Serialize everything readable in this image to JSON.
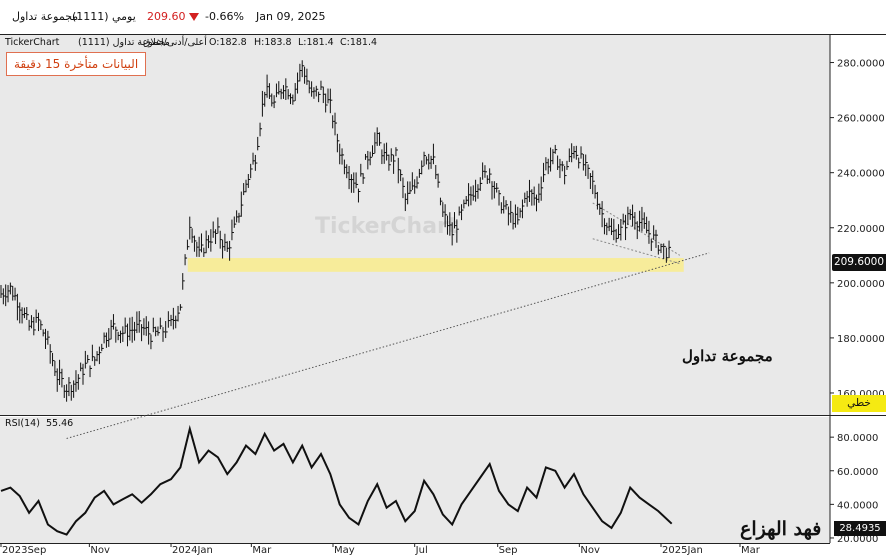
{
  "header": {
    "symbol_name": "مجموعة تداول",
    "symbol_code": "(1111)",
    "period": "يومي",
    "price": "209.60",
    "change": "-0.66%",
    "date": "Jan 09, 2025",
    "change_color": "#d32020"
  },
  "legend": {
    "source": "TickerChart",
    "symbol": "مجموعة تداول (1111)",
    "series": "أعلى/أدنى/اغلاق",
    "open": "O:182.8",
    "high": "H:183.8",
    "low": "L:181.4",
    "close": "C:181.4"
  },
  "notice": "البيانات متأخرة 15 دقيقة",
  "watermark": "TickerChart",
  "annotation": "مجموعة تداول",
  "signature": "فهد الهزاع",
  "scale_mode_button": "خطي",
  "last_price_tag": "209.6000",
  "rsi": {
    "label": "RSI(14)",
    "value": "55.46",
    "last_tag": "28.4935"
  },
  "colors": {
    "bars": "#111111",
    "panel_bg": "#e9e9e9",
    "zone": "#f7ec9a",
    "trendline": "#555555"
  },
  "chart_data": [
    {
      "type": "line",
      "style": "hlc-bars",
      "title": "",
      "y_ticks": [
        "160.0000",
        "180.0000",
        "200.0000",
        "220.0000",
        "240.0000",
        "260.0000",
        "280.0000"
      ],
      "ylim": [
        152,
        290
      ],
      "grid": false,
      "x_labels": [
        "2023Sep",
        "Nov",
        "2024Jan",
        "Mar",
        "May",
        "Jul",
        "Sep",
        "Nov",
        "2025Jan",
        "Mar"
      ],
      "x_label_dates": [
        "2023-08-27",
        "2023-11-01",
        "2024-01-01",
        "2024-03-01",
        "2024-05-01",
        "2024-07-01",
        "2024-09-01",
        "2024-11-01",
        "2025-01-01",
        "2025-03-01"
      ],
      "close_series": [
        [
          "2023-08-27",
          196
        ],
        [
          "2023-09-03",
          198
        ],
        [
          "2023-09-10",
          192
        ],
        [
          "2023-09-17",
          184
        ],
        [
          "2023-09-24",
          186
        ],
        [
          "2023-10-01",
          178
        ],
        [
          "2023-10-08",
          166
        ],
        [
          "2023-10-15",
          162
        ],
        [
          "2023-10-22",
          164
        ],
        [
          "2023-10-29",
          170
        ],
        [
          "2023-11-05",
          172
        ],
        [
          "2023-11-12",
          180
        ],
        [
          "2023-11-19",
          184
        ],
        [
          "2023-11-26",
          182
        ],
        [
          "2023-12-03",
          183
        ],
        [
          "2023-12-10",
          184
        ],
        [
          "2023-12-17",
          181
        ],
        [
          "2023-12-24",
          182
        ],
        [
          "2024-01-01",
          185
        ],
        [
          "2024-01-08",
          192
        ],
        [
          "2024-01-15",
          222
        ],
        [
          "2024-01-22",
          210
        ],
        [
          "2024-01-29",
          216
        ],
        [
          "2024-02-05",
          218
        ],
        [
          "2024-02-12",
          212
        ],
        [
          "2024-02-19",
          222
        ],
        [
          "2024-02-26",
          236
        ],
        [
          "2024-03-04",
          246
        ],
        [
          "2024-03-11",
          270
        ],
        [
          "2024-03-18",
          265
        ],
        [
          "2024-03-25",
          272
        ],
        [
          "2024-04-01",
          268
        ],
        [
          "2024-04-08",
          279
        ],
        [
          "2024-04-15",
          268
        ],
        [
          "2024-04-22",
          270
        ],
        [
          "2024-04-29",
          264
        ],
        [
          "2024-05-06",
          248
        ],
        [
          "2024-05-13",
          240
        ],
        [
          "2024-05-20",
          235
        ],
        [
          "2024-05-27",
          246
        ],
        [
          "2024-06-03",
          252
        ],
        [
          "2024-06-10",
          244
        ],
        [
          "2024-06-17",
          246
        ],
        [
          "2024-06-24",
          230
        ],
        [
          "2024-07-01",
          235
        ],
        [
          "2024-07-08",
          247
        ],
        [
          "2024-07-15",
          244
        ],
        [
          "2024-07-22",
          225
        ],
        [
          "2024-07-29",
          218
        ],
        [
          "2024-08-05",
          225
        ],
        [
          "2024-08-12",
          232
        ],
        [
          "2024-08-19",
          238
        ],
        [
          "2024-08-26",
          240
        ],
        [
          "2024-09-02",
          230
        ],
        [
          "2024-09-09",
          225
        ],
        [
          "2024-09-16",
          222
        ],
        [
          "2024-09-23",
          233
        ],
        [
          "2024-09-30",
          230
        ],
        [
          "2024-10-07",
          243
        ],
        [
          "2024-10-14",
          246
        ],
        [
          "2024-10-21",
          240
        ],
        [
          "2024-10-28",
          249
        ],
        [
          "2024-11-04",
          243
        ],
        [
          "2024-11-11",
          236
        ],
        [
          "2024-11-18",
          225
        ],
        [
          "2024-11-25",
          218
        ],
        [
          "2024-12-02",
          219
        ],
        [
          "2024-12-09",
          225
        ],
        [
          "2024-12-16",
          222
        ],
        [
          "2024-12-23",
          218
        ],
        [
          "2024-12-30",
          214
        ],
        [
          "2025-01-09",
          209.6
        ]
      ],
      "support_zone": [
        204,
        209
      ],
      "rising_trendline": [
        [
          "2023-10-15",
          158
        ],
        [
          "2025-01-22",
          210.5
        ]
      ],
      "wedge_upper": [
        [
          "2024-11-11",
          229
        ],
        [
          "2025-01-15",
          210
        ]
      ],
      "wedge_lower": [
        [
          "2024-11-11",
          216
        ],
        [
          "2025-01-15",
          207
        ]
      ]
    },
    {
      "type": "line",
      "title": "RSI(14)",
      "y_ticks": [
        "20.0000",
        "40.0000",
        "60.0000",
        "80.0000"
      ],
      "ylim": [
        17,
        92
      ],
      "values": [
        [
          "2023-08-27",
          48
        ],
        [
          "2023-09-03",
          50
        ],
        [
          "2023-09-10",
          45
        ],
        [
          "2023-09-17",
          35
        ],
        [
          "2023-09-24",
          42
        ],
        [
          "2023-10-01",
          28
        ],
        [
          "2023-10-08",
          24
        ],
        [
          "2023-10-15",
          22
        ],
        [
          "2023-10-22",
          30
        ],
        [
          "2023-10-29",
          35
        ],
        [
          "2023-11-05",
          44
        ],
        [
          "2023-11-12",
          48
        ],
        [
          "2023-11-19",
          40
        ],
        [
          "2023-11-26",
          43
        ],
        [
          "2023-12-03",
          46
        ],
        [
          "2023-12-10",
          41
        ],
        [
          "2023-12-17",
          46
        ],
        [
          "2023-12-24",
          52
        ],
        [
          "2024-01-01",
          55
        ],
        [
          "2024-01-08",
          62
        ],
        [
          "2024-01-15",
          85
        ],
        [
          "2024-01-22",
          65
        ],
        [
          "2024-01-29",
          72
        ],
        [
          "2024-02-05",
          68
        ],
        [
          "2024-02-12",
          58
        ],
        [
          "2024-02-19",
          65
        ],
        [
          "2024-02-26",
          75
        ],
        [
          "2024-03-04",
          70
        ],
        [
          "2024-03-11",
          82
        ],
        [
          "2024-03-18",
          72
        ],
        [
          "2024-03-25",
          76
        ],
        [
          "2024-04-01",
          65
        ],
        [
          "2024-04-08",
          75
        ],
        [
          "2024-04-15",
          62
        ],
        [
          "2024-04-22",
          70
        ],
        [
          "2024-04-29",
          58
        ],
        [
          "2024-05-06",
          40
        ],
        [
          "2024-05-13",
          32
        ],
        [
          "2024-05-20",
          28
        ],
        [
          "2024-05-27",
          42
        ],
        [
          "2024-06-03",
          52
        ],
        [
          "2024-06-10",
          38
        ],
        [
          "2024-06-17",
          42
        ],
        [
          "2024-06-24",
          30
        ],
        [
          "2024-07-01",
          36
        ],
        [
          "2024-07-08",
          54
        ],
        [
          "2024-07-15",
          46
        ],
        [
          "2024-07-22",
          34
        ],
        [
          "2024-07-29",
          28
        ],
        [
          "2024-08-05",
          40
        ],
        [
          "2024-08-12",
          48
        ],
        [
          "2024-08-19",
          56
        ],
        [
          "2024-08-26",
          64
        ],
        [
          "2024-09-02",
          48
        ],
        [
          "2024-09-09",
          40
        ],
        [
          "2024-09-16",
          36
        ],
        [
          "2024-09-23",
          50
        ],
        [
          "2024-09-30",
          44
        ],
        [
          "2024-10-07",
          62
        ],
        [
          "2024-10-14",
          60
        ],
        [
          "2024-10-21",
          50
        ],
        [
          "2024-10-28",
          58
        ],
        [
          "2024-11-04",
          46
        ],
        [
          "2024-11-11",
          38
        ],
        [
          "2024-11-18",
          30
        ],
        [
          "2024-11-25",
          26
        ],
        [
          "2024-12-02",
          35
        ],
        [
          "2024-12-09",
          50
        ],
        [
          "2024-12-16",
          44
        ],
        [
          "2024-12-23",
          40
        ],
        [
          "2024-12-30",
          36
        ],
        [
          "2025-01-09",
          28.49
        ]
      ]
    }
  ]
}
